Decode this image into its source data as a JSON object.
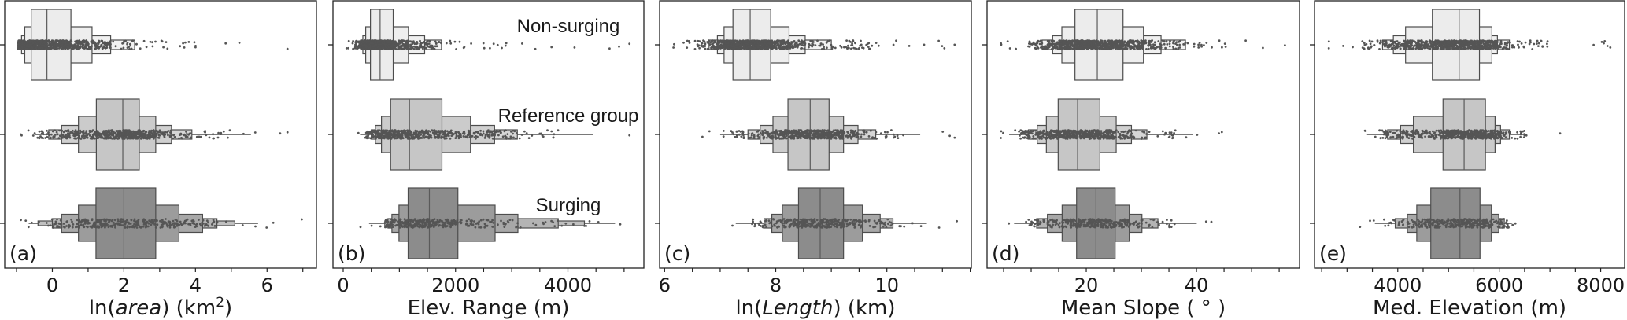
{
  "chart_data": [
    {
      "type": "boxen",
      "panel_label": "(a)",
      "xlabel": [
        {
          "text": "ln("
        },
        {
          "text": "area",
          "style": "italic"
        },
        {
          "text": ") (km"
        },
        {
          "text": "2",
          "style": "sup"
        },
        {
          "text": ")"
        }
      ],
      "xlim": [
        -1.33,
        7.38
      ],
      "xticks": [
        0,
        2,
        4,
        6
      ],
      "minor_step": 1,
      "groups": [
        {
          "name": "Non-surging",
          "median": -0.15,
          "levels": [
            [
              -0.59,
              0.52
            ],
            [
              -0.77,
              1.11
            ],
            [
              -0.86,
              1.63
            ],
            [
              -0.93,
              2.3
            ]
          ],
          "range": [
            -0.97,
            6.57
          ]
        },
        {
          "name": "Reference group",
          "median": 1.97,
          "levels": [
            [
              1.23,
              2.43
            ],
            [
              0.73,
              2.89
            ],
            [
              0.26,
              3.33
            ],
            [
              -0.1,
              3.9
            ]
          ],
          "tail": [
            -0.5,
            5.55
          ],
          "range": [
            -0.88,
            6.57
          ]
        },
        {
          "name": "Surging",
          "median": 2.0,
          "levels": [
            [
              1.22,
              2.89
            ],
            [
              0.73,
              3.54
            ],
            [
              0.26,
              4.2
            ],
            [
              0.0,
              4.6
            ],
            [
              -0.4,
              5.1
            ]
          ],
          "tail": [
            -0.66,
            5.75
          ],
          "range": [
            -0.88,
            6.97
          ]
        }
      ]
    },
    {
      "type": "boxen",
      "panel_label": "(b)",
      "xlabel": [
        {
          "text": "Elev. Range (m)"
        }
      ],
      "xlim": [
        -182,
        5352
      ],
      "xticks": [
        0,
        2000,
        4000
      ],
      "minor_step": 500,
      "groups": [
        {
          "name": "Non-surging",
          "median": 657,
          "levels": [
            [
              485,
              890
            ],
            [
              401,
              1161
            ],
            [
              350,
              1450
            ],
            [
              310,
              1750
            ]
          ],
          "range": [
            60,
            5096
          ]
        },
        {
          "name": "Reference group",
          "median": 1180,
          "levels": [
            [
              844,
              1758
            ],
            [
              681,
              2266
            ],
            [
              573,
              2695
            ],
            [
              500,
              3100
            ]
          ],
          "tail": [
            300,
            4443
          ],
          "range": [
            270,
            5096
          ]
        },
        {
          "name": "Surging",
          "median": 1534,
          "levels": [
            [
              1156,
              2042
            ],
            [
              993,
              2704
            ],
            [
              867,
              3110
            ],
            [
              797,
              3828
            ],
            [
              740,
              4294
            ]
          ],
          "tail": [
            460,
            4839
          ],
          "range": [
            308,
            4932
          ]
        }
      ]
    },
    {
      "type": "boxen",
      "panel_label": "(c)",
      "xlabel": [
        {
          "text": "ln("
        },
        {
          "text": "Length",
          "style": "italic"
        },
        {
          "text": ") (km)"
        }
      ],
      "xlim": [
        5.91,
        11.52
      ],
      "xticks": [
        6,
        8,
        10
      ],
      "minor_step": 0.5,
      "groups": [
        {
          "name": "Non-surging",
          "median": 7.54,
          "levels": [
            [
              7.23,
              7.91
            ],
            [
              7.07,
              8.24
            ],
            [
              6.95,
              8.53
            ],
            [
              6.8,
              9.0
            ]
          ],
          "range": [
            6.16,
            11.22
          ]
        },
        {
          "name": "Reference group",
          "median": 8.62,
          "levels": [
            [
              8.22,
              8.96
            ],
            [
              7.95,
              9.22
            ],
            [
              7.72,
              9.48
            ],
            [
              7.5,
              9.8
            ]
          ],
          "tail": [
            7.0,
            10.6
          ],
          "range": [
            6.68,
            11.22
          ]
        },
        {
          "name": "Surging",
          "median": 8.8,
          "levels": [
            [
              8.41,
              9.22
            ],
            [
              8.12,
              9.56
            ],
            [
              7.93,
              9.88
            ],
            [
              7.79,
              10.11
            ]
          ],
          "tail": [
            7.28,
            10.72
          ],
          "range": [
            7.22,
            11.26
          ]
        }
      ]
    },
    {
      "type": "boxen",
      "panel_label": "(d)",
      "xlabel": [
        {
          "text": "Mean Slope ( ° )"
        }
      ],
      "xlim": [
        2.0,
        58.7
      ],
      "xticks": [
        20,
        40
      ],
      "minor_step": 5,
      "groups": [
        {
          "name": "Non-surging",
          "median": 22.0,
          "levels": [
            [
              17.95,
              26.67
            ],
            [
              15.57,
              30.38
            ],
            [
              13.9,
              33.57
            ],
            [
              12.0,
              38.0
            ]
          ],
          "range": [
            4.52,
            56.05
          ]
        },
        {
          "name": "Reference group",
          "median": 18.43,
          "levels": [
            [
              14.9,
              22.48
            ],
            [
              12.76,
              25.43
            ],
            [
              11.1,
              28.2
            ],
            [
              9.5,
              31.0
            ]
          ],
          "tail": [
            6.0,
            39.3
          ],
          "range": [
            4.5,
            44.6
          ]
        },
        {
          "name": "Surging",
          "median": 21.76,
          "levels": [
            [
              18.24,
              25.24
            ],
            [
              15.62,
              27.8
            ],
            [
              12.95,
              30.1
            ],
            [
              11.0,
              33.0
            ]
          ],
          "tail": [
            6.9,
            40.05
          ],
          "range": [
            5.95,
            42.7
          ]
        }
      ]
    },
    {
      "type": "boxen",
      "panel_label": "(e)",
      "xlabel": [
        {
          "text": "Med. Elevation (m)"
        }
      ],
      "xlim": [
        2359,
        8472
      ],
      "xticks": [
        4000,
        6000,
        8000
      ],
      "minor_step": 500,
      "groups": [
        {
          "name": "Non-surging",
          "median": 5210,
          "levels": [
            [
              4682,
              5610
            ],
            [
              4154,
              5856
            ],
            [
              3913,
              5964
            ],
            [
              3700,
              6200
            ]
          ],
          "range": [
            2641,
            8190
          ]
        },
        {
          "name": "Reference group",
          "median": 5308,
          "levels": [
            [
              4892,
              5728
            ],
            [
              4308,
              5918
            ],
            [
              4056,
              6026
            ],
            [
              3800,
              6200
            ]
          ],
          "tail": [
            3395,
            6549
          ],
          "range": [
            3354,
            7200
          ]
        },
        {
          "name": "Surging",
          "median": 5226,
          "levels": [
            [
              4651,
              5621
            ],
            [
              4374,
              5846
            ],
            [
              4190,
              5990
            ],
            [
              3950,
              6100
            ]
          ],
          "tail": [
            3549,
            6250
          ],
          "range": [
            3256,
            6318
          ]
        }
      ]
    }
  ],
  "group_labels": [
    "Non-surging",
    "Reference group",
    "Surging"
  ],
  "colors": {
    "Non-surging": [
      "#ececec",
      "#eeeeee",
      "#f0f0f0",
      "#f2f2f2",
      "#f4f4f4"
    ],
    "Reference group": [
      "#c6c6c6",
      "#cbcbcb",
      "#d0d0d0",
      "#d6d6d6",
      "#dcdcdc"
    ],
    "Surging": [
      "#8c8c8c",
      "#9c9c9c",
      "#a8a8a8",
      "#b4b4b4",
      "#c0c0c0"
    ],
    "edge": "#4d4d4d",
    "points": "#555555"
  }
}
